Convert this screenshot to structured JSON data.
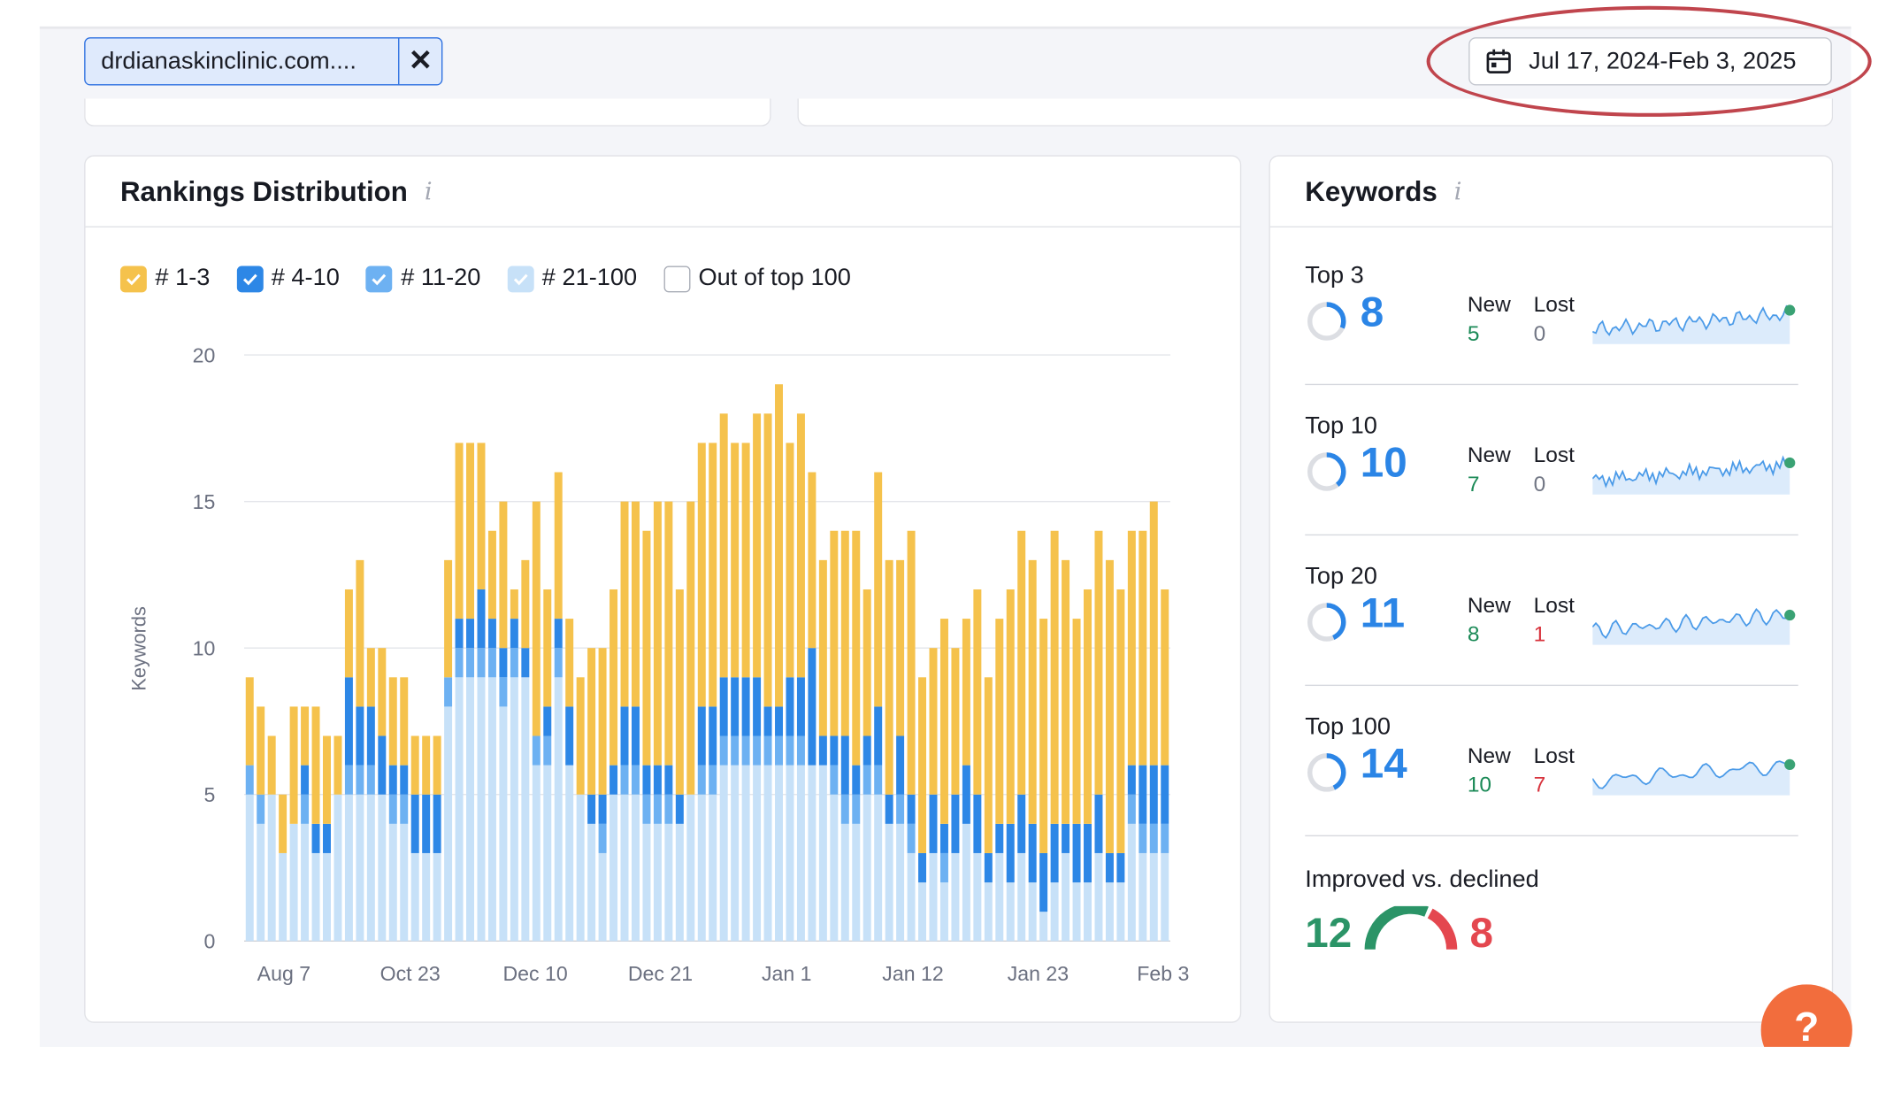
{
  "filter": {
    "domain_chip_label": "drdianaskinclinic.com...."
  },
  "date_range": {
    "label": "Jul 17, 2024-Feb 3, 2025"
  },
  "rankings": {
    "title": "Rankings Distribution",
    "info_icon": "i",
    "legend": [
      {
        "label": "# 1-3",
        "checked": true,
        "color": "#f5c24c"
      },
      {
        "label": "# 4-10",
        "checked": true,
        "color": "#2d87e6"
      },
      {
        "label": "# 11-20",
        "checked": true,
        "color": "#6db1f2"
      },
      {
        "label": "# 21-100",
        "checked": true,
        "color": "#c7e1f8"
      },
      {
        "label": "Out of top 100",
        "checked": false,
        "color": "#ffffff"
      }
    ]
  },
  "chart_data": {
    "type": "bar",
    "stacked": true,
    "ylabel": "Keywords",
    "ylim": [
      0,
      20
    ],
    "yticks": [
      0,
      5,
      10,
      15,
      20
    ],
    "x_tick_labels": [
      "Aug 7",
      "Oct 23",
      "Dec 10",
      "Dec 21",
      "Jan 1",
      "Jan 12",
      "Jan 23",
      "Feb 3"
    ],
    "grid": true,
    "series": [
      {
        "name": "# 21-100",
        "color": "#c7e1f8",
        "values": [
          5,
          4,
          5,
          3,
          4,
          4,
          3,
          3,
          5,
          5,
          5,
          5,
          5,
          4,
          4,
          3,
          3,
          3,
          8,
          9,
          9,
          9,
          9,
          8,
          9,
          9,
          6,
          6,
          9,
          6,
          5,
          4,
          3,
          5,
          5,
          5,
          4,
          4,
          4,
          4,
          5,
          5,
          5,
          6,
          6,
          6,
          6,
          6,
          6,
          6,
          6,
          6,
          6,
          5,
          4,
          4,
          5,
          5,
          4,
          4,
          3,
          2,
          3,
          2,
          3,
          4,
          3,
          2,
          3,
          2,
          3,
          2,
          1,
          2,
          3,
          2,
          2,
          3,
          2,
          2,
          4,
          3,
          3,
          3
        ]
      },
      {
        "name": "# 11-20",
        "color": "#6db1f2",
        "values": [
          1,
          1,
          0,
          0,
          0,
          1,
          0,
          0,
          0,
          1,
          1,
          1,
          0,
          1,
          1,
          0,
          0,
          0,
          1,
          1,
          1,
          1,
          1,
          1,
          1,
          0,
          1,
          1,
          1,
          0,
          0,
          0,
          1,
          0,
          1,
          1,
          1,
          1,
          1,
          0,
          0,
          1,
          1,
          1,
          1,
          1,
          1,
          1,
          1,
          1,
          1,
          0,
          0,
          1,
          1,
          1,
          1,
          1,
          0,
          1,
          1,
          0,
          0,
          1,
          0,
          0,
          0,
          0,
          0,
          0,
          0,
          0,
          0,
          0,
          0,
          0,
          0,
          0,
          0,
          0,
          1,
          1,
          1,
          1
        ]
      },
      {
        "name": "# 4-10",
        "color": "#2d87e6",
        "values": [
          0,
          0,
          0,
          0,
          0,
          1,
          1,
          1,
          0,
          3,
          2,
          2,
          2,
          1,
          1,
          2,
          2,
          2,
          0,
          1,
          1,
          2,
          1,
          1,
          1,
          1,
          0,
          1,
          1,
          2,
          0,
          1,
          1,
          1,
          2,
          2,
          1,
          1,
          1,
          1,
          0,
          2,
          2,
          2,
          2,
          2,
          2,
          1,
          1,
          2,
          2,
          4,
          1,
          1,
          2,
          1,
          1,
          2,
          1,
          2,
          1,
          1,
          2,
          1,
          2,
          2,
          2,
          1,
          1,
          2,
          2,
          2,
          2,
          2,
          1,
          2,
          2,
          2,
          1,
          1,
          1,
          2,
          2,
          2
        ]
      },
      {
        "name": "# 1-3",
        "color": "#f5c24c",
        "values": [
          3,
          3,
          2,
          2,
          4,
          2,
          4,
          3,
          2,
          3,
          5,
          2,
          3,
          3,
          3,
          2,
          2,
          2,
          4,
          6,
          6,
          5,
          3,
          5,
          1,
          3,
          8,
          4,
          5,
          3,
          4,
          5,
          5,
          6,
          7,
          7,
          8,
          9,
          9,
          7,
          10,
          9,
          9,
          9,
          8,
          8,
          9,
          10,
          11,
          8,
          9,
          6,
          6,
          7,
          7,
          8,
          5,
          8,
          8,
          6,
          9,
          6,
          5,
          7,
          5,
          5,
          7,
          6,
          7,
          8,
          9,
          9,
          8,
          10,
          9,
          7,
          8,
          9,
          10,
          9,
          8,
          8,
          9,
          6
        ]
      }
    ]
  },
  "keywords": {
    "title": "Keywords",
    "info_icon": "i",
    "new_header": "New",
    "lost_header": "Lost",
    "rows": [
      {
        "label": "Top 3",
        "value": "8",
        "new": "5",
        "lost": "0",
        "ring_fraction": 0.57
      },
      {
        "label": "Top 10",
        "value": "10",
        "new": "7",
        "lost": "0",
        "ring_fraction": 0.71
      },
      {
        "label": "Top 20",
        "value": "11",
        "new": "8",
        "lost": "1",
        "ring_fraction": 0.79
      },
      {
        "label": "Top 100",
        "value": "14",
        "new": "10",
        "lost": "7",
        "ring_fraction": 0.78
      }
    ],
    "improved_label": "Improved vs. declined",
    "improved": "12",
    "declined": "8"
  },
  "help": {
    "label": "?"
  }
}
